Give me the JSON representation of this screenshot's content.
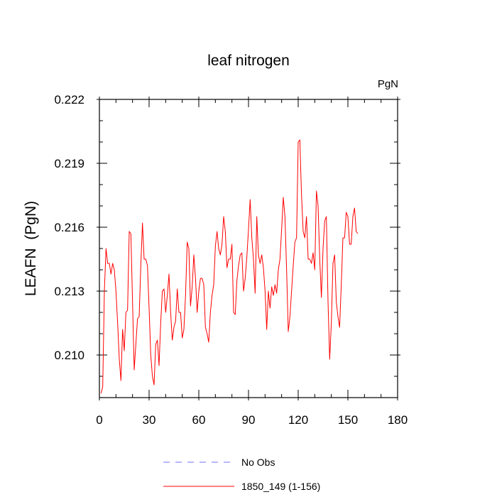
{
  "chart_data": {
    "type": "line",
    "title": "leaf nitrogen",
    "units_label": "PgN",
    "ylabel": "LEAFN  (PgN)",
    "xlabel": "",
    "xlim": [
      0,
      180
    ],
    "ylim": [
      0.208,
      0.222
    ],
    "xticks": [
      0,
      30,
      60,
      90,
      120,
      150,
      180
    ],
    "xtick_labels": [
      "0",
      "30",
      "60",
      "90",
      "120",
      "150",
      "180"
    ],
    "yticks": [
      0.21,
      0.213,
      0.216,
      0.219,
      0.222
    ],
    "ytick_labels": [
      "0.210",
      "0.213",
      "0.216",
      "0.219",
      "0.222"
    ],
    "grid": false,
    "legend": [
      {
        "label": "No Obs",
        "color": "#7070ff",
        "dash": true
      },
      {
        "label": "1850_149 (1-156)",
        "color": "#ff0000",
        "dash": false
      }
    ],
    "series": [
      {
        "name": "1850_149 (1-156)",
        "color": "#ff0000",
        "x": [
          1,
          2,
          3,
          4,
          5,
          6,
          7,
          8,
          9,
          10,
          11,
          12,
          13,
          14,
          15,
          16,
          17,
          18,
          19,
          20,
          21,
          22,
          23,
          24,
          25,
          26,
          27,
          28,
          29,
          30,
          31,
          32,
          33,
          34,
          35,
          36,
          37,
          38,
          39,
          40,
          41,
          42,
          43,
          44,
          45,
          46,
          47,
          48,
          49,
          50,
          51,
          52,
          53,
          54,
          55,
          56,
          57,
          58,
          59,
          60,
          61,
          62,
          63,
          64,
          65,
          66,
          67,
          68,
          69,
          70,
          71,
          72,
          73,
          74,
          75,
          76,
          77,
          78,
          79,
          80,
          81,
          82,
          83,
          84,
          85,
          86,
          87,
          88,
          89,
          90,
          91,
          92,
          93,
          94,
          95,
          96,
          97,
          98,
          99,
          100,
          101,
          102,
          103,
          104,
          105,
          106,
          107,
          108,
          109,
          110,
          111,
          112,
          113,
          114,
          115,
          116,
          117,
          118,
          119,
          120,
          121,
          122,
          123,
          124,
          125,
          126,
          127,
          128,
          129,
          130,
          131,
          132,
          133,
          134,
          135,
          136,
          137,
          138,
          139,
          140,
          141,
          142,
          143,
          144,
          145,
          146,
          147,
          148,
          149,
          150,
          151,
          152,
          153,
          154,
          155,
          156
        ],
        "values": [
          0.2082,
          0.2085,
          0.213,
          0.215,
          0.2143,
          0.2143,
          0.2138,
          0.2143,
          0.214,
          0.213,
          0.2115,
          0.2098,
          0.2088,
          0.2112,
          0.2102,
          0.212,
          0.2121,
          0.2158,
          0.2157,
          0.2125,
          0.2093,
          0.2105,
          0.2117,
          0.2118,
          0.2142,
          0.2162,
          0.2145,
          0.2145,
          0.2142,
          0.2122,
          0.21,
          0.209,
          0.2086,
          0.2105,
          0.2107,
          0.2095,
          0.2115,
          0.213,
          0.2131,
          0.212,
          0.2128,
          0.2138,
          0.212,
          0.2107,
          0.2113,
          0.2116,
          0.2131,
          0.212,
          0.212,
          0.2108,
          0.2112,
          0.2128,
          0.2153,
          0.215,
          0.2123,
          0.2132,
          0.2147,
          0.2136,
          0.212,
          0.213,
          0.2136,
          0.2136,
          0.2133,
          0.2113,
          0.211,
          0.2106,
          0.212,
          0.2128,
          0.2133,
          0.2151,
          0.2158,
          0.215,
          0.2147,
          0.2152,
          0.2165,
          0.2158,
          0.2141,
          0.2145,
          0.2145,
          0.2152,
          0.212,
          0.2119,
          0.2135,
          0.2142,
          0.2147,
          0.2148,
          0.213,
          0.2136,
          0.2146,
          0.2159,
          0.2173,
          0.2155,
          0.2145,
          0.2129,
          0.2165,
          0.2147,
          0.2143,
          0.2147,
          0.2141,
          0.213,
          0.2112,
          0.213,
          0.2122,
          0.2132,
          0.2128,
          0.2133,
          0.2129,
          0.214,
          0.2145,
          0.2159,
          0.2174,
          0.2165,
          0.214,
          0.2111,
          0.2118,
          0.213,
          0.2142,
          0.2153,
          0.2155,
          0.22,
          0.2201,
          0.2175,
          0.2158,
          0.2155,
          0.2165,
          0.2145,
          0.2145,
          0.2143,
          0.2148,
          0.214,
          0.2177,
          0.217,
          0.2145,
          0.2127,
          0.215,
          0.2163,
          0.2165,
          0.2125,
          0.2098,
          0.2115,
          0.2143,
          0.2147,
          0.2125,
          0.2118,
          0.2113,
          0.2133,
          0.2155,
          0.2155,
          0.2167,
          0.2165,
          0.2152,
          0.2152,
          0.2165,
          0.2169,
          0.2158,
          0.2157
        ]
      }
    ]
  }
}
